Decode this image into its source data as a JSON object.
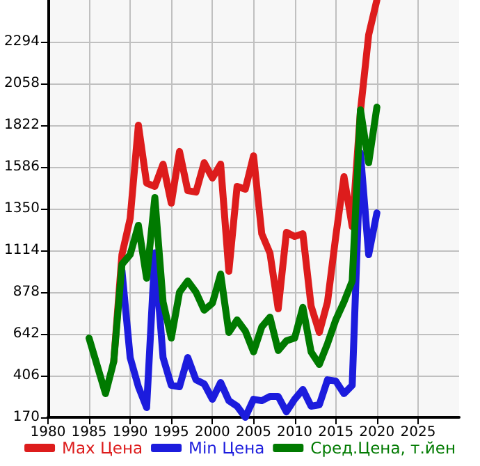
{
  "chart_data": {
    "type": "line",
    "x": [
      1985,
      1986,
      1987,
      1988,
      1989,
      1990,
      1991,
      1992,
      1993,
      1994,
      1995,
      1996,
      1997,
      1998,
      1999,
      2000,
      2001,
      2002,
      2003,
      2004,
      2005,
      2006,
      2007,
      2008,
      2009,
      2010,
      2011,
      2012,
      2013,
      2014,
      2015,
      2016,
      2017,
      2018,
      2019,
      2020
    ],
    "series": [
      {
        "name": "Max Цена",
        "color": "#dd1c1c",
        "values": [
          null,
          null,
          null,
          485,
          1090,
          1295,
          1822,
          1494,
          1476,
          1602,
          1381,
          1673,
          1452,
          1444,
          1610,
          1523,
          1602,
          996,
          1476,
          1460,
          1649,
          1208,
          1098,
          784,
          1216,
          1193,
          1208,
          799,
          650,
          823,
          1193,
          1531,
          1248,
          1901,
          2333,
          2530
        ]
      },
      {
        "name": "Min Цена",
        "color": "#1c1cdd",
        "values": [
          null,
          null,
          null,
          null,
          1000,
          508,
          343,
          225,
          1100,
          508,
          351,
          343,
          508,
          382,
          359,
          272,
          367,
          264,
          233,
          170,
          272,
          264,
          288,
          288,
          201,
          272,
          327,
          233,
          241,
          382,
          375,
          304,
          351,
          1665,
          1090,
          1326
        ]
      },
      {
        "name": "Сред.Цена, т.йен",
        "color": "#007a00",
        "values": [
          618,
          461,
          304,
          485,
          1035,
          1090,
          1256,
          957,
          1413,
          823,
          618,
          878,
          941,
          878,
          776,
          815,
          980,
          650,
          721,
          658,
          540,
          681,
          736,
          548,
          603,
          618,
          792,
          540,
          469,
          587,
          721,
          823,
          941,
          1909,
          1610,
          1924
        ]
      }
    ],
    "xlim": [
      1980,
      2030
    ],
    "xticks": [
      1980,
      1985,
      1990,
      1995,
      2000,
      2005,
      2010,
      2015,
      2020,
      2025
    ],
    "ylim": [
      170,
      2530
    ],
    "yticks": [
      170,
      406,
      642,
      878,
      1114,
      1350,
      1586,
      1822,
      2058,
      2294
    ],
    "grid": true,
    "legend": "bottom",
    "marker": "none",
    "line_style": "solid"
  }
}
